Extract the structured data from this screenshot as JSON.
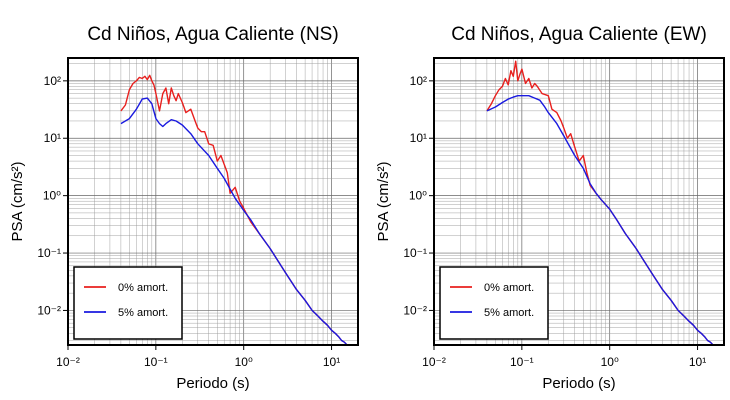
{
  "chart_data": [
    {
      "type": "line",
      "title": "Cd Niños, Agua Caliente (NS)",
      "xlabel": "Periodo (s)",
      "ylabel": "PSA (cm/s²)",
      "xscale": "log",
      "yscale": "log",
      "xlim": [
        0.01,
        20
      ],
      "ylim": [
        0.0025,
        250
      ],
      "grid": true,
      "legend_position": "bottom-left",
      "x_ticks": [
        {
          "value": 0.01,
          "label": "10⁻²"
        },
        {
          "value": 0.1,
          "label": "10⁻¹"
        },
        {
          "value": 1,
          "label": "10⁰"
        },
        {
          "value": 10,
          "label": "10¹"
        }
      ],
      "y_ticks": [
        {
          "value": 100,
          "label": "10²"
        },
        {
          "value": 10,
          "label": "10¹"
        },
        {
          "value": 1,
          "label": "10⁰"
        },
        {
          "value": 0.1,
          "label": "10⁻¹"
        },
        {
          "value": 0.01,
          "label": "10⁻²"
        }
      ],
      "series": [
        {
          "name": "0% amort.",
          "color": "#e8201e",
          "x": [
            0.04,
            0.045,
            0.05,
            0.055,
            0.06,
            0.065,
            0.07,
            0.075,
            0.08,
            0.085,
            0.09,
            0.095,
            0.1,
            0.11,
            0.12,
            0.13,
            0.14,
            0.15,
            0.16,
            0.17,
            0.18,
            0.2,
            0.22,
            0.25,
            0.28,
            0.3,
            0.33,
            0.36,
            0.4,
            0.45,
            0.5,
            0.55,
            0.6,
            0.65,
            0.7,
            0.8,
            0.9,
            1.0,
            1.2,
            1.5,
            2,
            3,
            4,
            5,
            6,
            7,
            8,
            9,
            10,
            11,
            12,
            13,
            14,
            15
          ],
          "y": [
            30,
            38,
            70,
            90,
            100,
            115,
            110,
            120,
            105,
            125,
            100,
            85,
            60,
            30,
            60,
            75,
            40,
            75,
            55,
            45,
            60,
            42,
            28,
            32,
            20,
            15,
            13,
            13,
            8,
            7.5,
            4,
            5,
            3.5,
            2.5,
            1.1,
            1.4,
            0.8,
            0.6,
            0.35,
            0.22,
            0.12,
            0.045,
            0.023,
            0.015,
            0.01,
            0.008,
            0.0065,
            0.0055,
            0.0045,
            0.004,
            0.0035,
            0.003,
            0.0028,
            0.0025
          ]
        },
        {
          "name": "5% amort.",
          "color": "#1a1adf",
          "x": [
            0.04,
            0.05,
            0.06,
            0.07,
            0.08,
            0.09,
            0.1,
            0.11,
            0.12,
            0.13,
            0.15,
            0.17,
            0.2,
            0.25,
            0.3,
            0.4,
            0.5,
            0.6,
            0.7,
            0.8,
            1.0,
            1.2,
            1.5,
            2,
            3,
            4,
            5,
            6,
            7,
            8,
            9,
            10,
            11,
            12,
            13,
            14,
            15
          ],
          "y": [
            18,
            22,
            32,
            48,
            50,
            40,
            22,
            18,
            16,
            18,
            21,
            20,
            17,
            12,
            8,
            5,
            3,
            2,
            1.3,
            0.9,
            0.55,
            0.38,
            0.22,
            0.12,
            0.045,
            0.023,
            0.015,
            0.01,
            0.008,
            0.0065,
            0.0055,
            0.0045,
            0.004,
            0.0035,
            0.003,
            0.0028,
            0.0025
          ]
        }
      ]
    },
    {
      "type": "line",
      "title": "Cd Niños, Agua Caliente (EW)",
      "xlabel": "Periodo (s)",
      "ylabel": "PSA (cm/s²)",
      "xscale": "log",
      "yscale": "log",
      "xlim": [
        0.01,
        20
      ],
      "ylim": [
        0.0025,
        250
      ],
      "grid": true,
      "legend_position": "bottom-left",
      "x_ticks": [
        {
          "value": 0.01,
          "label": "10⁻²"
        },
        {
          "value": 0.1,
          "label": "10⁻¹"
        },
        {
          "value": 1,
          "label": "10⁰"
        },
        {
          "value": 10,
          "label": "10¹"
        }
      ],
      "y_ticks": [
        {
          "value": 100,
          "label": "10²"
        },
        {
          "value": 10,
          "label": "10¹"
        },
        {
          "value": 1,
          "label": "10⁰"
        },
        {
          "value": 0.1,
          "label": "10⁻¹"
        },
        {
          "value": 0.01,
          "label": "10⁻²"
        }
      ],
      "series": [
        {
          "name": "0% amort.",
          "color": "#e8201e",
          "x": [
            0.04,
            0.045,
            0.05,
            0.055,
            0.06,
            0.065,
            0.07,
            0.075,
            0.08,
            0.085,
            0.09,
            0.095,
            0.1,
            0.11,
            0.12,
            0.13,
            0.14,
            0.15,
            0.17,
            0.2,
            0.22,
            0.25,
            0.28,
            0.3,
            0.33,
            0.36,
            0.4,
            0.45,
            0.5,
            0.55,
            0.6,
            0.7,
            0.8,
            1.0,
            1.2,
            1.5,
            2,
            3,
            4,
            5,
            6,
            7,
            8,
            9,
            10,
            11,
            12,
            13,
            14,
            15
          ],
          "y": [
            30,
            40,
            55,
            70,
            80,
            110,
            85,
            150,
            120,
            220,
            100,
            130,
            160,
            90,
            110,
            75,
            90,
            80,
            60,
            55,
            32,
            28,
            20,
            15,
            10,
            12,
            7,
            4,
            5,
            2.5,
            1.5,
            1.1,
            0.85,
            0.58,
            0.38,
            0.22,
            0.12,
            0.045,
            0.023,
            0.015,
            0.01,
            0.008,
            0.0065,
            0.0055,
            0.0045,
            0.004,
            0.0035,
            0.003,
            0.0028,
            0.0025
          ]
        },
        {
          "name": "5% amort.",
          "color": "#1a1adf",
          "x": [
            0.04,
            0.05,
            0.06,
            0.07,
            0.08,
            0.09,
            0.1,
            0.12,
            0.14,
            0.16,
            0.18,
            0.2,
            0.25,
            0.3,
            0.4,
            0.5,
            0.6,
            0.7,
            0.8,
            1.0,
            1.2,
            1.5,
            2,
            3,
            4,
            5,
            6,
            7,
            8,
            9,
            10,
            11,
            12,
            13,
            14,
            15
          ],
          "y": [
            30,
            35,
            42,
            48,
            52,
            55,
            55,
            55,
            50,
            46,
            36,
            28,
            18,
            11,
            5,
            3,
            1.6,
            1.1,
            0.85,
            0.58,
            0.38,
            0.22,
            0.12,
            0.045,
            0.023,
            0.015,
            0.01,
            0.008,
            0.0065,
            0.0055,
            0.0045,
            0.004,
            0.0035,
            0.003,
            0.0028,
            0.0025
          ]
        }
      ]
    }
  ]
}
